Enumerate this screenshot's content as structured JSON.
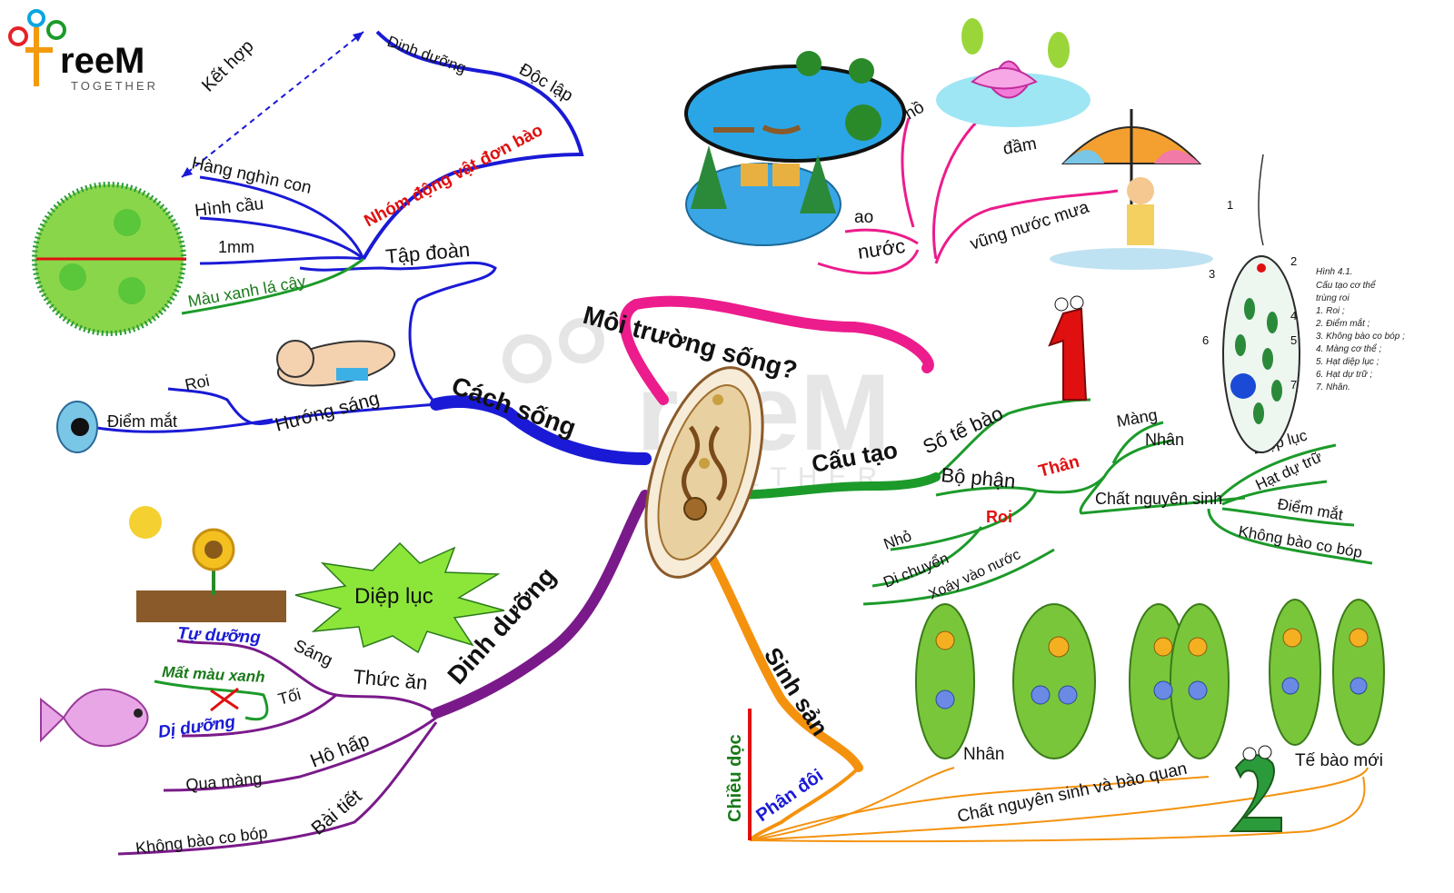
{
  "logo": {
    "text": "reeM",
    "sub": "TOGETHER"
  },
  "watermark": {
    "text": "reeM",
    "sub": "TOGETHER"
  },
  "branches": {
    "moitruong": "Môi trường sống?",
    "cachsong": "Cách sống",
    "cautao": "Cấu tạo",
    "dinhduong": "Dinh dưỡng",
    "sinhsan": "Sinh sản"
  },
  "moitruong": {
    "nuoc": "nước",
    "ao": "ao",
    "ho": "hồ",
    "dam": "đầm",
    "vung": "vũng nước mưa"
  },
  "cachsong": {
    "taphoan": "Tập đoàn",
    "nhom": "Nhóm động vật đơn bào",
    "hangnghin": "Hàng nghìn con",
    "hinhcau": "Hình cầu",
    "mm": "1mm",
    "mau": "Màu xanh lá cây",
    "ketHop": "Kết hợp",
    "dinhduong": "Dinh dưỡng",
    "doclap": "Độc lập",
    "huongsang": "Hướng sáng",
    "roi": "Roi",
    "diemmat": "Điểm mắt"
  },
  "cautao": {
    "sotebao": "Số tế bào",
    "bophan": "Bộ phận",
    "than": "Thân",
    "mang": "Màng",
    "nhan": "Nhân",
    "cns": "Chất nguyên sinh",
    "diepluc": "Diệp lục",
    "hatdutru": "Hạt dự trữ",
    "diemmat": "Điểm mắt",
    "khongbao": "Không bào co bóp",
    "roi": "Roi",
    "nho": "Nhỏ",
    "dichuyen": "Di chuyển",
    "xoay": "Xoáy vào nước"
  },
  "dinhduong": {
    "thucan": "Thức ăn",
    "sang": "Sáng",
    "toi": "Tối",
    "tuduong": "Tự dưỡng",
    "matmau": "Mất màu xanh",
    "diduong": "Dị dưỡng",
    "hohap": "Hô hấp",
    "quamang": "Qua màng",
    "baitiet": "Bài tiết",
    "khongbao": "Không bào co bóp",
    "diepluc": "Diệp lục"
  },
  "sinhsan": {
    "chieudoc": "Chiều dọc",
    "phandoi": "Phân đôi",
    "nhan": "Nhân",
    "cns": "Chất nguyên sinh và bào quan",
    "tebaomoi": "Tế bào mới"
  },
  "figure": {
    "caption": [
      "Hình 4.1.",
      "Cấu tạo cơ thể",
      "trùng roi",
      "1. Roi ;",
      "2. Điểm mắt ;",
      "3. Không bào co bóp ;",
      "4. Màng cơ thể ;",
      "5. Hạt diệp lục ;",
      "6. Hạt dự trữ ;",
      "7. Nhân."
    ],
    "nums": [
      "1",
      "2",
      "3",
      "4",
      "5",
      "6",
      "7"
    ]
  },
  "mascot": {
    "one": "1",
    "two": "2"
  },
  "colors": {
    "pink": "#ec1c8c",
    "blue": "#1a1ad6",
    "green": "#1c9a2a",
    "purple": "#7a1a8a",
    "orange": "#f4920e",
    "red": "#e01010",
    "darkgreen": "#1a7a1a"
  }
}
